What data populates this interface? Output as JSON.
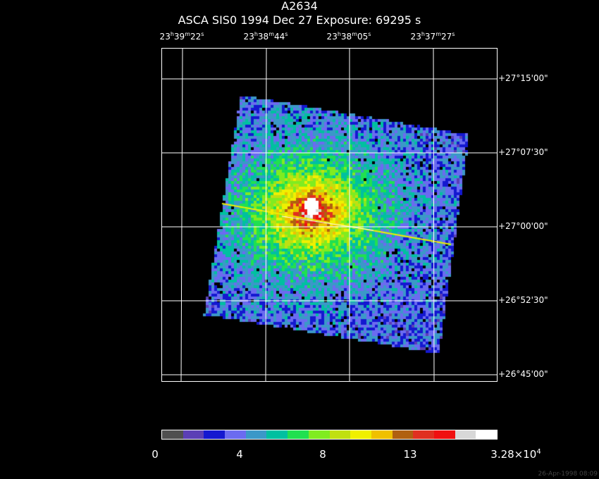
{
  "title": "A2634",
  "subtitle": "ASCA SIS0   1994 Dec 27    Exposure: 69295 s",
  "ra_ticks": [
    {
      "h": "23",
      "m": "39",
      "s": "22"
    },
    {
      "h": "23",
      "m": "38",
      "s": "44"
    },
    {
      "h": "23",
      "m": "38",
      "s": "05"
    },
    {
      "h": "23",
      "m": "37",
      "s": "27"
    }
  ],
  "dec_ticks": [
    "+27°15'00\"",
    "+27°07'30\"",
    "+27°00'00\"",
    "+26°52'30\"",
    "+26°45'00\""
  ],
  "colorbar": {
    "colors": [
      "#505050",
      "#5b3fb5",
      "#1418d0",
      "#6b6bf0",
      "#3b98c8",
      "#00c0a0",
      "#20e050",
      "#80ec20",
      "#c0e010",
      "#f0f000",
      "#f0c000",
      "#b06010",
      "#e03020",
      "#f01010",
      "#d8d8d8",
      "#ffffff"
    ],
    "labels": [
      "0",
      "4",
      "8",
      "13"
    ],
    "max_label_base": "3.28×10",
    "max_label_exp": "4"
  },
  "timestamp": "26-Apr-1998 08:09"
}
